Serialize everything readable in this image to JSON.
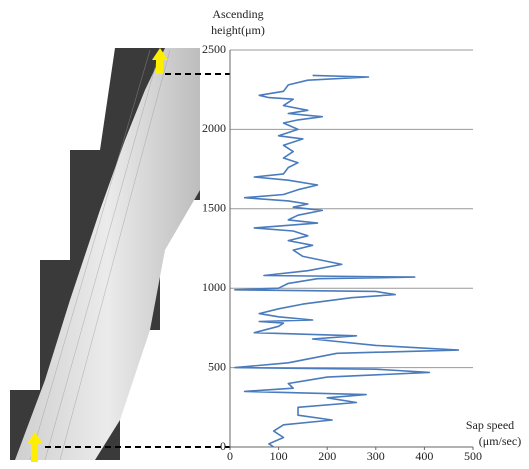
{
  "chart_data": {
    "type": "line",
    "y_label": [
      "Ascending",
      "height(μm)"
    ],
    "x_label": [
      "Sap speed",
      "(μm/sec)"
    ],
    "xlim": [
      0,
      500
    ],
    "xticks": [
      0,
      100,
      200,
      300,
      400,
      500
    ],
    "ylim": [
      0,
      2500
    ],
    "yticks": [
      0,
      500,
      1000,
      1500,
      2000,
      2500
    ],
    "grid": true,
    "x": [
      170,
      285,
      160,
      120,
      110,
      60,
      80,
      130,
      110,
      160,
      120,
      190,
      140,
      110,
      140,
      100,
      150,
      110,
      130,
      110,
      140,
      120,
      110,
      50,
      120,
      180,
      140,
      110,
      30,
      120,
      160,
      130,
      190,
      140,
      120,
      180,
      50,
      130,
      160,
      120,
      170,
      130,
      150,
      230,
      160,
      70,
      380,
      180,
      120,
      100,
      10,
      300,
      340,
      250,
      150,
      100,
      60,
      100,
      170,
      60,
      110,
      100,
      50,
      260,
      170,
      300,
      470,
      220,
      120,
      10,
      300,
      410,
      200,
      120,
      130,
      30,
      280,
      200,
      260,
      140,
      140,
      210,
      110,
      90,
      110,
      80,
      90
    ],
    "series": [
      {
        "color": "#4a7bbd",
        "values": [
          2340,
          2330,
          2310,
          2280,
          2240,
          2215,
          2200,
          2190,
          2150,
          2120,
          2100,
          2080,
          2060,
          2040,
          2000,
          1960,
          1940,
          1900,
          1860,
          1820,
          1790,
          1760,
          1720,
          1700,
          1680,
          1650,
          1620,
          1590,
          1570,
          1550,
          1530,
          1510,
          1490,
          1460,
          1430,
          1410,
          1380,
          1360,
          1330,
          1300,
          1270,
          1240,
          1200,
          1150,
          1110,
          1080,
          1070,
          1060,
          1030,
          1000,
          990,
          980,
          960,
          940,
          900,
          870,
          840,
          820,
          800,
          790,
          780,
          760,
          720,
          700,
          680,
          640,
          610,
          590,
          530,
          500,
          490,
          470,
          440,
          400,
          370,
          350,
          330,
          310,
          280,
          250,
          200,
          170,
          140,
          100,
          60,
          20,
          0
        ]
      }
    ]
  }
}
